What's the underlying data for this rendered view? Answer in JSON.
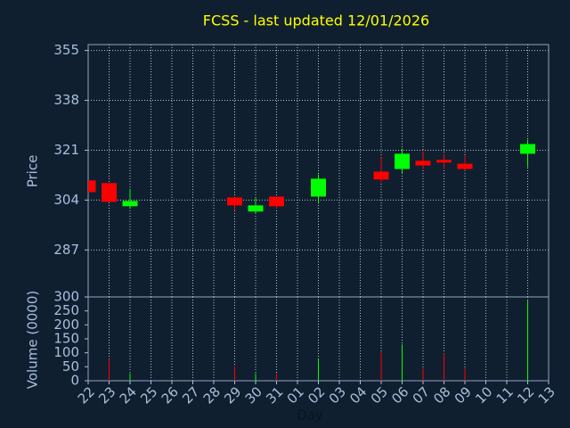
{
  "chart_data": {
    "type": "candlestick",
    "title": "FCSS - last updated 12/01/2026",
    "xlabel": "Day",
    "ylabel": "Price",
    "y2label": "Volume (0000)",
    "categories": [
      "22",
      "23",
      "24",
      "25",
      "26",
      "27",
      "28",
      "29",
      "30",
      "31",
      "01",
      "02",
      "03",
      "04",
      "05",
      "06",
      "07",
      "08",
      "09",
      "10",
      "11",
      "12",
      "13"
    ],
    "open": [
      310.7,
      309.8,
      301.9,
      null,
      null,
      null,
      null,
      304.9,
      300.1,
      305.2,
      null,
      305.2,
      null,
      null,
      313.7,
      314.6,
      317.4,
      317.7,
      316.4,
      null,
      null,
      319.8,
      null
    ],
    "high": [
      310.7,
      309.8,
      307.9,
      null,
      null,
      null,
      null,
      305.2,
      304.6,
      305.2,
      null,
      312.8,
      null,
      null,
      318.6,
      321.6,
      320.7,
      319.8,
      319.2,
      null,
      null,
      324.6,
      null
    ],
    "low": [
      306.7,
      303.4,
      301.3,
      null,
      null,
      null,
      null,
      300.4,
      299.4,
      301.0,
      null,
      302.8,
      null,
      null,
      310.1,
      313.1,
      314.6,
      314.6,
      314.0,
      null,
      null,
      315.2,
      null
    ],
    "close": [
      306.7,
      303.4,
      303.7,
      null,
      null,
      null,
      null,
      302.2,
      302.2,
      301.9,
      null,
      311.3,
      null,
      null,
      311.0,
      319.8,
      315.8,
      316.8,
      314.6,
      null,
      null,
      323.1,
      null
    ],
    "volume": [
      0,
      78,
      26,
      null,
      null,
      null,
      null,
      52,
      26,
      26,
      null,
      78,
      null,
      null,
      104,
      130,
      46,
      98,
      46,
      null,
      null,
      287,
      null
    ],
    "up_color": "#00ff00",
    "down_color": "#ff0000",
    "ylim": [
      271,
      357
    ],
    "yticks": [
      287,
      304,
      321,
      338,
      355
    ],
    "y2lim": [
      0,
      300
    ],
    "y2ticks": [
      0,
      50,
      100,
      150,
      200,
      250,
      300
    ],
    "grid": true
  }
}
